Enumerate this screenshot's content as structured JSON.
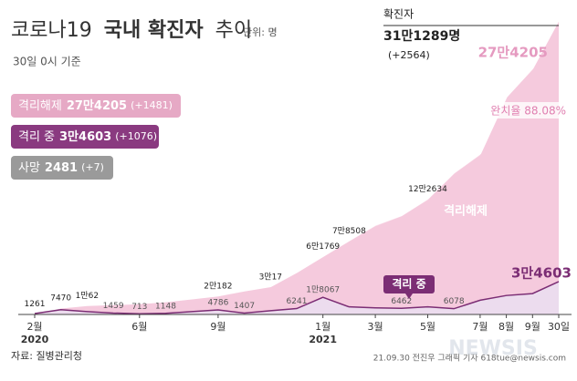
{
  "chart_data": {
    "type": "stacked-area",
    "title": [
      "코로나19",
      "국내 확진자",
      "추이"
    ],
    "unit": "단위: 명",
    "subtitle": "30일 0시 기준",
    "categories": [
      "2월",
      null,
      null,
      null,
      "6월",
      null,
      null,
      "9월",
      null,
      null,
      null,
      "1월",
      null,
      "3월",
      null,
      "5월",
      null,
      "7월",
      "8월",
      "9월",
      "30일"
    ],
    "years": [
      "2020",
      null,
      null,
      null,
      null,
      null,
      null,
      null,
      null,
      null,
      null,
      "2021",
      null,
      null,
      null,
      null,
      null,
      null,
      null,
      null,
      null
    ],
    "ylim": [
      0,
      320000
    ],
    "confirmed": {
      "name": "확진자",
      "color": "#ffffff",
      "values": [
        1261,
        7470,
        10062,
        11000,
        12000,
        14000,
        17000,
        20182,
        25500,
        30017,
        45000,
        61769,
        78508,
        95000,
        105000,
        122634,
        150000,
        170000,
        230000,
        260000,
        311289
      ],
      "value_labels": [
        "1261",
        "7470",
        "1만62",
        null,
        null,
        null,
        null,
        "2만182",
        null,
        "3만17",
        null,
        "6만1769",
        "7만8508",
        null,
        null,
        "12만2634",
        null,
        null,
        null,
        null,
        "31만1289명"
      ],
      "change": "(+2564)"
    },
    "series": [
      {
        "name": "격리 중",
        "color": "#7b2d74",
        "values": [
          1000,
          5000,
          3000,
          1459,
          713,
          1148,
          3000,
          4786,
          1407,
          4000,
          6241,
          18067,
          8000,
          7000,
          6462,
          8000,
          6078,
          15000,
          20000,
          22000,
          34603
        ],
        "value_labels": [
          null,
          null,
          null,
          "1459",
          "713",
          "1148",
          null,
          "4786",
          "1407",
          null,
          "6241",
          "1만8067",
          null,
          null,
          "6462",
          null,
          "6078",
          null,
          null,
          null,
          "3만4603"
        ]
      },
      {
        "name": "격리해제",
        "color": "#eaa6c6",
        "values": [
          250,
          2400,
          6900,
          9280,
          11000,
          12550,
          13690,
          15066,
          23600,
          25500,
          38000,
          42500,
          69000,
          86000,
          97000,
          112700,
          142000,
          153000,
          208000,
          236000,
          274205
        ],
        "value_labels": [
          null,
          null,
          null,
          null,
          null,
          null,
          null,
          null,
          null,
          null,
          null,
          null,
          null,
          null,
          null,
          null,
          null,
          null,
          null,
          null,
          "27만4205"
        ]
      }
    ],
    "legend": [
      {
        "name": "격리해제",
        "value": "27만4205",
        "change": "(+1481)",
        "color": "#e6a9c5"
      },
      {
        "name": "격리 중",
        "value": "3만4603",
        "change": "(+1076)",
        "color": "#8a3a80"
      },
      {
        "name": "사망",
        "value": "2481",
        "change": "(+7)",
        "color": "#9a9a9a"
      }
    ],
    "recovery_rate": "완치율 88.08%",
    "source": "자료: 질병관리청",
    "credit": "21.09.30 전진우 그래픽 기자 618tue@newsis.com",
    "watermark": "NEWSIS"
  }
}
